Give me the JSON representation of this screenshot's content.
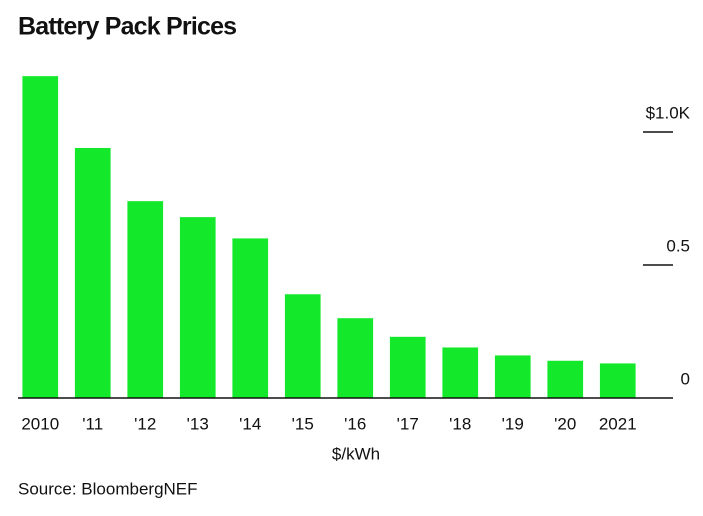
{
  "chart_data": {
    "type": "bar",
    "title": "Battery Pack Prices",
    "categories": [
      "2010",
      "'11",
      "'12",
      "'13",
      "'14",
      "'15",
      "'16",
      "'17",
      "'18",
      "'19",
      "'20",
      "2021"
    ],
    "values": [
      1.21,
      0.94,
      0.74,
      0.68,
      0.6,
      0.39,
      0.3,
      0.23,
      0.19,
      0.16,
      0.14,
      0.13
    ],
    "color": "#14e82a",
    "ylim": [
      0,
      1.2
    ],
    "yticks": [
      0,
      0.5,
      {
        "value": 1.0,
        "label": "$1.0K"
      }
    ],
    "x_label": "$/kWh",
    "source": "Source: BloombergNEF"
  }
}
